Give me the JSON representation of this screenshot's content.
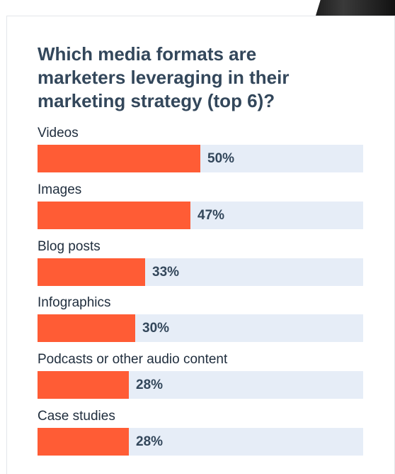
{
  "chart_data": {
    "type": "bar",
    "orientation": "horizontal",
    "title": "Which media formats are marketers leveraging in their marketing strategy (top 6)?",
    "categories": [
      "Videos",
      "Images",
      "Blog posts",
      "Infographics",
      "Podcasts or other audio content",
      "Case studies"
    ],
    "values": [
      50,
      47,
      33,
      30,
      28,
      28
    ],
    "value_labels": [
      "50%",
      "47%",
      "33%",
      "30%",
      "28%",
      "28%"
    ],
    "xlim": [
      0,
      100
    ],
    "grid": false,
    "legend": "none"
  },
  "colors": {
    "bar": "#ff5c35",
    "track": "#e6edf7",
    "title": "#33475b",
    "label": "#1f2d3d",
    "value": "#33475b"
  }
}
